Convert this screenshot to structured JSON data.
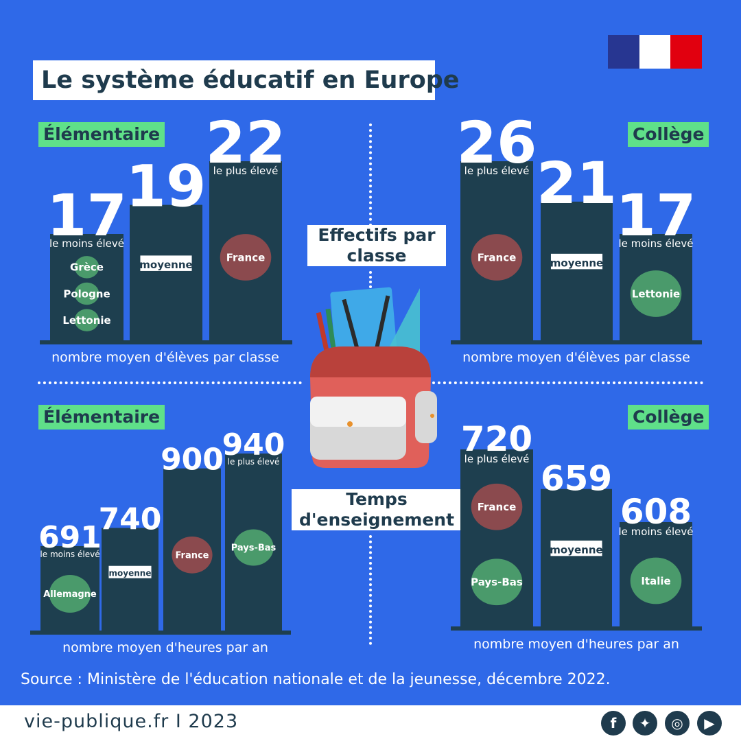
{
  "title": "Le système éducatif en Europe",
  "flag_colors": [
    "#273691",
    "#ffffff",
    "#e1000f"
  ],
  "section_top": "Effectifs par classe",
  "section_bottom": "Temps d'enseignement",
  "source": "Source : Ministère de l'éducation nationale et de la jeunesse, décembre 2022.",
  "site": "vie-publique.fr I 2023",
  "social_icons": [
    "facebook-icon",
    "twitter-icon",
    "instagram-icon",
    "youtube-icon"
  ],
  "colors": {
    "background": "#2f69e8",
    "bar": "#1e3f4f",
    "level_tag": "#5fe089",
    "france_map": "#8b4a4e",
    "other_map": "#4a9a6b",
    "backpack": "#e0605a"
  },
  "chart_data": [
    {
      "id": "effectifs_elementaire",
      "type": "bar",
      "level": "Élémentaire",
      "xlabel": "nombre moyen d'élèves par classe",
      "bars": [
        {
          "value": 17,
          "label": "le moins élevé",
          "countries": [
            "Grèce",
            "Pologne",
            "Lettonie"
          ]
        },
        {
          "value": 19,
          "label": "moyenne",
          "countries": []
        },
        {
          "value": 22,
          "label": "le plus élevé",
          "countries": [
            "France"
          ]
        }
      ]
    },
    {
      "id": "effectifs_college",
      "type": "bar",
      "level": "Collège",
      "xlabel": "nombre moyen d'élèves par classe",
      "bars": [
        {
          "value": 26,
          "label": "le plus élevé",
          "countries": [
            "France"
          ]
        },
        {
          "value": 21,
          "label": "moyenne",
          "countries": []
        },
        {
          "value": 17,
          "label": "le moins élevé",
          "countries": [
            "Lettonie"
          ]
        }
      ]
    },
    {
      "id": "temps_elementaire",
      "type": "bar",
      "level": "Élémentaire",
      "xlabel": "nombre moyen d'heures par an",
      "bars": [
        {
          "value": 691,
          "label": "le moins élevé",
          "countries": [
            "Allemagne"
          ]
        },
        {
          "value": 740,
          "label": "moyenne",
          "countries": []
        },
        {
          "value": 900,
          "label": "",
          "countries": [
            "France"
          ]
        },
        {
          "value": 940,
          "label": "le plus élevé",
          "countries": [
            "Pays-Bas"
          ]
        }
      ]
    },
    {
      "id": "temps_college",
      "type": "bar",
      "level": "Collège",
      "xlabel": "nombre moyen d'heures par an",
      "bars": [
        {
          "value": 720,
          "label": "le plus élevé",
          "countries": [
            "France",
            "Pays-Bas"
          ]
        },
        {
          "value": 659,
          "label": "moyenne",
          "countries": []
        },
        {
          "value": 608,
          "label": "le moins élevé",
          "countries": [
            "Italie"
          ]
        }
      ]
    }
  ]
}
